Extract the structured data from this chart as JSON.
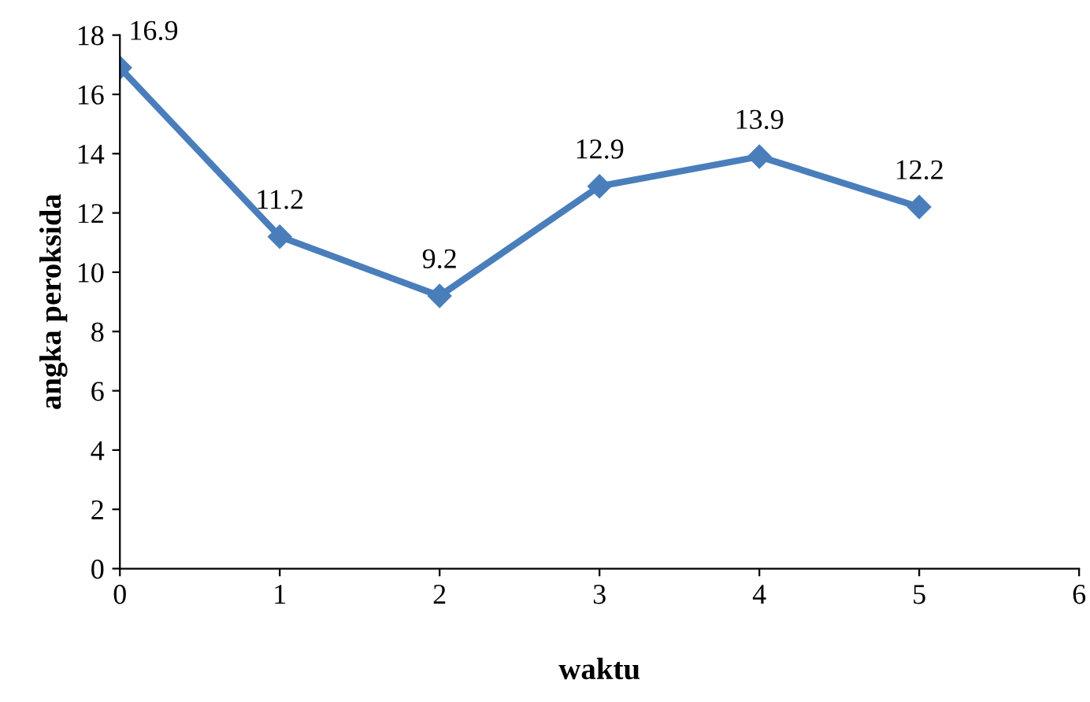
{
  "chart_data": {
    "type": "line",
    "xlabel": "waktu",
    "ylabel": "angka peroksida",
    "x": [
      0,
      1,
      2,
      3,
      4,
      5
    ],
    "series": [
      {
        "color": "#4a7ebb",
        "values": [
          16.9,
          11.2,
          9.2,
          12.9,
          13.9,
          12.2
        ]
      }
    ],
    "xlim": [
      0,
      6
    ],
    "xticks": [
      0,
      1,
      2,
      3,
      4,
      5,
      6
    ],
    "ylim": [
      0,
      18
    ],
    "yticks": [
      0,
      2,
      4,
      6,
      8,
      10,
      12,
      14,
      16,
      18
    ],
    "data_labels": true,
    "marker": "diamond",
    "line_style": "solid",
    "grid": false,
    "legend": false
  }
}
